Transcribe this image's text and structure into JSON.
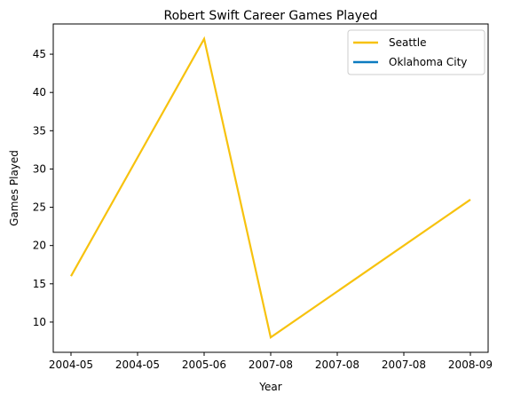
{
  "chart_data": {
    "type": "line",
    "title": "Robert Swift Career Games Played",
    "xlabel": "Year",
    "ylabel": "Games Played",
    "x_tick_labels": [
      "2004-05",
      "2004-05",
      "2005-06",
      "2007-08",
      "2007-08",
      "2007-08",
      "2008-09"
    ],
    "y_ticks": [
      10,
      15,
      20,
      25,
      30,
      35,
      40,
      45
    ],
    "ylim": [
      6.05,
      48.95
    ],
    "grid": false,
    "legend_placement": "top-right",
    "series": [
      {
        "name": "Seattle",
        "color": "#f7c20e",
        "x": [
          "2004-05",
          "2005-06",
          "2007-08",
          "2008-09"
        ],
        "values": [
          16,
          47,
          8,
          26
        ]
      },
      {
        "name": "Oklahoma City",
        "color": "#0c7bc0",
        "x": [],
        "values": []
      }
    ]
  }
}
